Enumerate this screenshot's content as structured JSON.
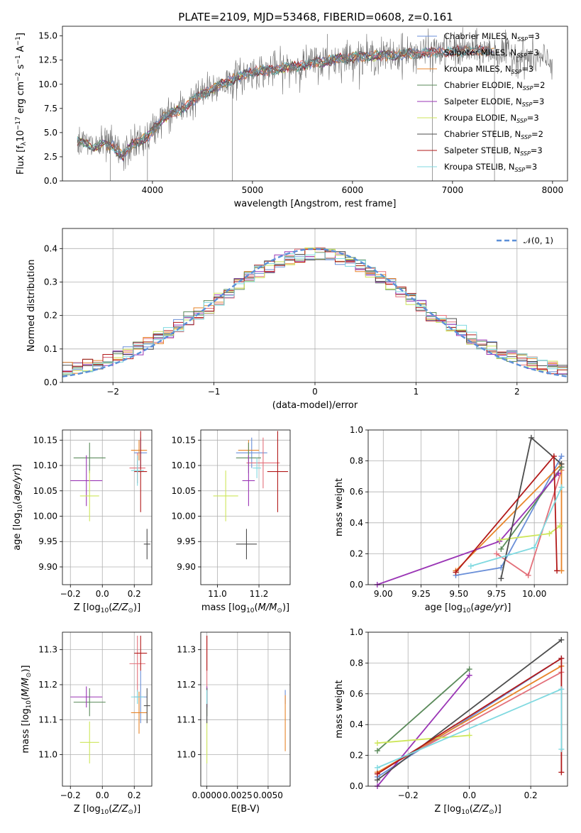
{
  "title": "PLATE=2109, MJD=53468, FIBERID=0608, z=0.161",
  "colors": {
    "Chabrier MILES": "#6a8fd8",
    "Salpeter MILES": "#e3707a",
    "Kroupa MILES": "#e8852a",
    "Chabrier ELODIE": "#5a8a5a",
    "Salpeter ELODIE": "#9a35b5",
    "Kroupa ELODIE": "#cde65a",
    "Chabrier STELIB": "#4d4d4d",
    "Salpeter STELIB": "#b21a1a",
    "Kroupa STELIB": "#7fd9e0",
    "data": "#707070",
    "gaussian": "#5b8fd8",
    "grid": "#b0b0b0"
  },
  "chart_data": [
    {
      "id": "spectrum",
      "type": "line",
      "title": "PLATE=2109, MJD=53468, FIBERID=0608, z=0.161",
      "xlabel": "wavelength [Angstrom, rest frame]",
      "ylabel": "Flux [f_λ 10^-17 erg cm^-2 s^-1 A^-1]",
      "xlim": [
        3100,
        8150
      ],
      "ylim": [
        0,
        16
      ],
      "xticks": [
        "4000",
        "5000",
        "6000",
        "7000",
        "8000"
      ],
      "yticks": [
        "0.0",
        "2.5",
        "5.0",
        "7.5",
        "10.0",
        "12.5",
        "15.0"
      ],
      "grid": false,
      "legend_position": "right",
      "legend": [
        {
          "label": "Chabrier MILES, N",
          "sub": "SSP",
          "tail": "=3",
          "key": "Chabrier MILES"
        },
        {
          "label": "Salpeter MILES, N",
          "sub": "SSP",
          "tail": "=3",
          "key": "Salpeter MILES"
        },
        {
          "label": "Kroupa MILES, N",
          "sub": "SSP",
          "tail": "=3",
          "key": "Kroupa MILES"
        },
        {
          "label": "Chabrier ELODIE, N",
          "sub": "SSP",
          "tail": "=2",
          "key": "Chabrier ELODIE"
        },
        {
          "label": "Salpeter ELODIE, N",
          "sub": "SSP",
          "tail": "=3",
          "key": "Salpeter ELODIE"
        },
        {
          "label": "Kroupa ELODIE, N",
          "sub": "SSP",
          "tail": "=3",
          "key": "Kroupa ELODIE"
        },
        {
          "label": "Chabrier STELIB, N",
          "sub": "SSP",
          "tail": "=2",
          "key": "Chabrier STELIB"
        },
        {
          "label": "Salpeter STELIB, N",
          "sub": "SSP",
          "tail": "=3",
          "key": "Salpeter STELIB"
        },
        {
          "label": "Kroupa STELIB, N",
          "sub": "SSP",
          "tail": "=3",
          "key": "Kroupa STELIB"
        }
      ],
      "continuum": [
        [
          3250,
          4.0
        ],
        [
          3400,
          3.6
        ],
        [
          3600,
          3.7
        ],
        [
          3700,
          2.5
        ],
        [
          3800,
          3.8
        ],
        [
          3950,
          4.5
        ],
        [
          4100,
          6.5
        ],
        [
          4300,
          7.5
        ],
        [
          4500,
          9.0
        ],
        [
          4800,
          10.5
        ],
        [
          5000,
          11.3
        ],
        [
          5200,
          11.5
        ],
        [
          5400,
          11.8
        ],
        [
          5600,
          12.2
        ],
        [
          5800,
          12.5
        ],
        [
          6000,
          12.8
        ],
        [
          6200,
          12.9
        ],
        [
          6400,
          13.0
        ],
        [
          6600,
          13.2
        ],
        [
          6800,
          13.3
        ],
        [
          7000,
          13.4
        ],
        [
          7200,
          13.5
        ],
        [
          7400,
          13.4
        ],
        [
          7600,
          13.1
        ],
        [
          7800,
          12.6
        ],
        [
          8000,
          12.4
        ]
      ],
      "spikes": [
        [
          3580,
          0
        ],
        [
          3950,
          0
        ],
        [
          4800,
          0
        ],
        [
          6800,
          0
        ],
        [
          7420,
          0
        ],
        [
          5750,
          15.2
        ],
        [
          6500,
          15.3
        ],
        [
          7070,
          15.2
        ]
      ]
    },
    {
      "id": "residuals",
      "type": "bar",
      "xlabel": "(data-model)/error",
      "ylabel": "Normed distribution",
      "xlim": [
        -2.5,
        2.5
      ],
      "ylim": [
        0,
        0.46
      ],
      "xticks": [
        "−2",
        "−1",
        "0",
        "1",
        "2"
      ],
      "yticks": [
        "0.0",
        "0.1",
        "0.2",
        "0.3",
        "0.4"
      ],
      "grid": true,
      "legend_position": "top-right",
      "gaussian_label": "𝒩(0, 1)",
      "bin_width": 0.1
    },
    {
      "id": "age_vs_Z",
      "type": "scatter",
      "xlabel": "Z [log10(Z/Z⊙)]",
      "ylabel": "age  [log10(age/yr)]",
      "xlim": [
        -0.25,
        0.31
      ],
      "ylim": [
        9.865,
        10.17
      ],
      "xticks": [
        "−0.2",
        "0.0",
        "0.2"
      ],
      "yticks": [
        "9.90",
        "9.95",
        "10.00",
        "10.05",
        "10.10",
        "10.15"
      ],
      "grid": true,
      "points": [
        {
          "key": "Chabrier MILES",
          "x": 0.24,
          "y": 10.125,
          "xerr": 0.04,
          "yerr": 0.03
        },
        {
          "key": "Salpeter MILES",
          "x": 0.22,
          "y": 10.095,
          "xerr": 0.05,
          "yerr": 0.03
        },
        {
          "key": "Kroupa MILES",
          "x": 0.23,
          "y": 10.13,
          "xerr": 0.05,
          "yerr": 0.02
        },
        {
          "key": "Chabrier ELODIE",
          "x": -0.08,
          "y": 10.115,
          "xerr": 0.1,
          "yerr": 0.03
        },
        {
          "key": "Salpeter ELODIE",
          "x": -0.1,
          "y": 10.07,
          "xerr": 0.1,
          "yerr": 0.05
        },
        {
          "key": "Kroupa ELODIE",
          "x": -0.08,
          "y": 10.04,
          "xerr": 0.06,
          "yerr": 0.05
        },
        {
          "key": "Chabrier STELIB",
          "x": 0.28,
          "y": 9.945,
          "xerr": 0.02,
          "yerr": 0.03
        },
        {
          "key": "Salpeter STELIB",
          "x": 0.24,
          "y": 10.088,
          "xerr": 0.04,
          "yerr": 0.08
        },
        {
          "key": "Kroupa STELIB",
          "x": 0.22,
          "y": 10.09,
          "xerr": 0.04,
          "yerr": 0.03
        }
      ]
    },
    {
      "id": "age_vs_mass",
      "type": "scatter",
      "xlabel": "mass [log10(M/M⊙)]",
      "ylabel": "",
      "xlim": [
        10.92,
        11.35
      ],
      "ylim": [
        9.865,
        10.17
      ],
      "xticks": [
        "11.0",
        "11.2"
      ],
      "yticks": [
        "9.90",
        "9.95",
        "10.00",
        "10.05",
        "10.10",
        "10.15"
      ],
      "grid": true,
      "points": [
        {
          "key": "Chabrier MILES",
          "x": 11.165,
          "y": 10.125,
          "xerr": 0.075,
          "yerr": 0.03
        },
        {
          "key": "Salpeter MILES",
          "x": 11.22,
          "y": 10.105,
          "xerr": 0.08,
          "yerr": 0.05
        },
        {
          "key": "Kroupa MILES",
          "x": 11.15,
          "y": 10.13,
          "xerr": 0.05,
          "yerr": 0.02
        },
        {
          "key": "Chabrier ELODIE",
          "x": 11.15,
          "y": 10.115,
          "xerr": 0.06,
          "yerr": 0.03
        },
        {
          "key": "Salpeter ELODIE",
          "x": 11.15,
          "y": 10.07,
          "xerr": 0.03,
          "yerr": 0.05
        },
        {
          "key": "Kroupa ELODIE",
          "x": 11.04,
          "y": 10.04,
          "xerr": 0.06,
          "yerr": 0.05
        },
        {
          "key": "Chabrier STELIB",
          "x": 11.14,
          "y": 9.945,
          "xerr": 0.05,
          "yerr": 0.03
        },
        {
          "key": "Salpeter STELIB",
          "x": 11.29,
          "y": 10.088,
          "xerr": 0.05,
          "yerr": 0.08
        },
        {
          "key": "Kroupa STELIB",
          "x": 11.19,
          "y": 10.095,
          "xerr": 0.02,
          "yerr": 0.02
        }
      ]
    },
    {
      "id": "weight_vs_age",
      "type": "line",
      "xlabel": "age  [log10(age/yr)]",
      "ylabel": "mass weight",
      "xlim": [
        8.9,
        10.22
      ],
      "ylim": [
        0,
        1
      ],
      "xticks": [
        "9.00",
        "9.25",
        "9.50",
        "9.75",
        "10.00"
      ],
      "yticks": [
        "0.0",
        "0.2",
        "0.4",
        "0.6",
        "0.8",
        "1.0"
      ],
      "grid": true,
      "series": [
        {
          "key": "Chabrier MILES",
          "x": [
            9.48,
            9.78,
            10.18
          ],
          "y": [
            0.06,
            0.11,
            0.83
          ]
        },
        {
          "key": "Salpeter MILES",
          "x": [
            9.75,
            9.96,
            10.18
          ],
          "y": [
            0.2,
            0.06,
            0.74
          ]
        },
        {
          "key": "Kroupa MILES",
          "x": [
            9.48,
            10.18,
            10.18
          ],
          "y": [
            0.09,
            0.78,
            0.09
          ]
        },
        {
          "key": "Chabrier ELODIE",
          "x": [
            9.78,
            10.18
          ],
          "y": [
            0.23,
            0.76
          ]
        },
        {
          "key": "Salpeter ELODIE",
          "x": [
            8.96,
            9.77,
            10.16
          ],
          "y": [
            0.0,
            0.28,
            0.72
          ]
        },
        {
          "key": "Kroupa ELODIE",
          "x": [
            9.77,
            10.1,
            10.17
          ],
          "y": [
            0.29,
            0.33,
            0.38
          ]
        },
        {
          "key": "Chabrier STELIB",
          "x": [
            9.78,
            9.98,
            10.18
          ],
          "y": [
            0.04,
            0.95,
            0.78
          ]
        },
        {
          "key": "Salpeter STELIB",
          "x": [
            9.48,
            10.13,
            10.15
          ],
          "y": [
            0.08,
            0.83,
            0.09
          ]
        },
        {
          "key": "Kroupa STELIB",
          "x": [
            9.58,
            10.0,
            10.18
          ],
          "y": [
            0.12,
            0.24,
            0.63
          ]
        }
      ]
    },
    {
      "id": "mass_vs_Z",
      "type": "scatter",
      "xlabel": "Z [log10(Z/Z⊙)]",
      "ylabel": "mass [log10(M/M⊙)]",
      "xlim": [
        -0.25,
        0.31
      ],
      "ylim": [
        10.91,
        11.35
      ],
      "xticks": [
        "−0.2",
        "0.0",
        "0.2"
      ],
      "yticks": [
        "11.0",
        "11.1",
        "11.2",
        "11.3"
      ],
      "grid": true,
      "points": [
        {
          "key": "Chabrier MILES",
          "x": 0.24,
          "y": 11.165,
          "xerr": 0.04,
          "yerr": 0.075
        },
        {
          "key": "Salpeter MILES",
          "x": 0.22,
          "y": 11.26,
          "xerr": 0.05,
          "yerr": 0.08
        },
        {
          "key": "Kroupa MILES",
          "x": 0.23,
          "y": 11.12,
          "xerr": 0.05,
          "yerr": 0.06
        },
        {
          "key": "Chabrier ELODIE",
          "x": -0.08,
          "y": 11.15,
          "xerr": 0.1,
          "yerr": 0.04
        },
        {
          "key": "Salpeter ELODIE",
          "x": -0.1,
          "y": 11.165,
          "xerr": 0.1,
          "yerr": 0.03
        },
        {
          "key": "Kroupa ELODIE",
          "x": -0.08,
          "y": 11.035,
          "xerr": 0.06,
          "yerr": 0.06
        },
        {
          "key": "Chabrier STELIB",
          "x": 0.28,
          "y": 11.14,
          "xerr": 0.02,
          "yerr": 0.05
        },
        {
          "key": "Salpeter STELIB",
          "x": 0.24,
          "y": 11.29,
          "xerr": 0.04,
          "yerr": 0.05
        },
        {
          "key": "Kroupa STELIB",
          "x": 0.22,
          "y": 11.165,
          "xerr": 0.04,
          "yerr": 0.02
        }
      ]
    },
    {
      "id": "mass_vs_ebv",
      "type": "scatter",
      "xlabel": "E(B-V)",
      "ylabel": "",
      "xlim": [
        -0.0005,
        0.0068
      ],
      "ylim": [
        10.91,
        11.35
      ],
      "xticks": [
        "0.0000",
        "0.0025",
        "0.0050"
      ],
      "yticks": [
        "11.0",
        "11.1",
        "11.2",
        "11.3"
      ],
      "grid": true,
      "points": [
        {
          "key": "Chabrier MILES",
          "x": 0.0064,
          "y": 11.165,
          "xerr": 0.0,
          "yerr": 0.02
        },
        {
          "key": "Salpeter MILES",
          "x": 0.0,
          "y": 11.26,
          "xerr": 0.0,
          "yerr": 0.08
        },
        {
          "key": "Kroupa MILES",
          "x": 0.0064,
          "y": 11.09,
          "xerr": 0.0,
          "yerr": 0.08
        },
        {
          "key": "Chabrier ELODIE",
          "x": 0.0,
          "y": 11.15,
          "xerr": 0.0,
          "yerr": 0.04
        },
        {
          "key": "Salpeter ELODIE",
          "x": 0.0,
          "y": 11.165,
          "xerr": 0.0,
          "yerr": 0.03
        },
        {
          "key": "Kroupa ELODIE",
          "x": 0.0,
          "y": 11.035,
          "xerr": 0.0,
          "yerr": 0.06
        },
        {
          "key": "Chabrier STELIB",
          "x": 0.0,
          "y": 11.14,
          "xerr": 0.0,
          "yerr": 0.05
        },
        {
          "key": "Salpeter STELIB",
          "x": 0.0,
          "y": 11.29,
          "xerr": 0.0,
          "yerr": 0.05
        },
        {
          "key": "Kroupa STELIB",
          "x": 0.0,
          "y": 11.165,
          "xerr": 0.0,
          "yerr": 0.02
        }
      ]
    },
    {
      "id": "weight_vs_Z",
      "type": "line",
      "xlabel": "Z [log10(Z/Z⊙)]",
      "ylabel": "mass weight",
      "xlim": [
        -0.33,
        0.32
      ],
      "ylim": [
        0,
        1
      ],
      "xticks": [
        "−0.2",
        "0.0",
        "0.2"
      ],
      "yticks": [
        "0.0",
        "0.2",
        "0.4",
        "0.6",
        "0.8",
        "1.0"
      ],
      "grid": true,
      "series": [
        {
          "key": "Chabrier MILES",
          "x": [
            -0.3,
            0.3
          ],
          "y": [
            0.06,
            0.83
          ]
        },
        {
          "key": "Salpeter MILES",
          "x": [
            -0.3,
            0.3
          ],
          "y": [
            0.09,
            0.74
          ]
        },
        {
          "key": "Kroupa MILES",
          "x": [
            -0.3,
            0.3
          ],
          "y": [
            0.09,
            0.78
          ]
        },
        {
          "key": "Chabrier ELODIE",
          "x": [
            -0.3,
            0.0
          ],
          "y": [
            0.23,
            0.76
          ]
        },
        {
          "key": "Salpeter ELODIE",
          "x": [
            -0.3,
            0.0
          ],
          "y": [
            0.0,
            0.72
          ]
        },
        {
          "key": "Kroupa ELODIE",
          "x": [
            -0.3,
            0.0
          ],
          "y": [
            0.28,
            0.33
          ]
        },
        {
          "key": "Chabrier STELIB",
          "x": [
            -0.3,
            0.3
          ],
          "y": [
            0.04,
            0.95
          ]
        },
        {
          "key": "Salpeter STELIB",
          "x": [
            -0.3,
            0.3,
            0.3
          ],
          "y": [
            0.08,
            0.83,
            0.09
          ]
        },
        {
          "key": "Kroupa STELIB",
          "x": [
            -0.3,
            0.3,
            0.3
          ],
          "y": [
            0.12,
            0.63,
            0.24
          ]
        }
      ]
    }
  ]
}
